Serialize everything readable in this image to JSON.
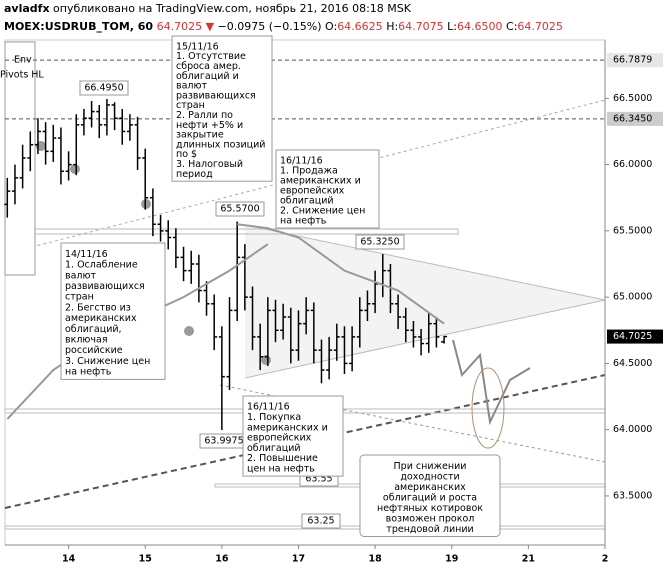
{
  "header": {
    "author": "avladfx",
    "published": "опубликовано на TradingView.com, ноябрь 21, 2016 08:18 MSK",
    "symbol": "MOEX:USDRUB_TOM, 60",
    "last": "64.7025",
    "arrow": "▼",
    "change": "−0.0975 (−0.15%)",
    "quote": [
      {
        "label": "O:",
        "value": "64.6625"
      },
      {
        "label": "H:",
        "value": "64.7075"
      },
      {
        "label": "L:",
        "value": "64.6500"
      },
      {
        "label": "C:",
        "value": "64.7025"
      }
    ]
  },
  "indicators": [
    "Env",
    "Pivots HL"
  ],
  "chart_data": {
    "type": "ohlc",
    "color": "#000000",
    "x": [
      -0.8,
      -0.7,
      -0.6,
      -0.5,
      -0.4,
      -0.3,
      -0.2,
      -0.1,
      0,
      0.1,
      0.2,
      0.3,
      0.4,
      0.5,
      0.6,
      0.7,
      0.8,
      0.9,
      1,
      1.1,
      1.2,
      1.3,
      1.4,
      1.5,
      1.6,
      1.7,
      1.8,
      1.9,
      2,
      2.1,
      2.2,
      2.3,
      2.4,
      2.5,
      2.6,
      2.7,
      2.8,
      2.9,
      3,
      3.1,
      3.2,
      3.3,
      3.4,
      3.5,
      3.6,
      3.7,
      3.8,
      3.9,
      4,
      4.1,
      4.2,
      4.3,
      4.4,
      4.5,
      4.6,
      4.7,
      4.8,
      4.9
    ],
    "open": [
      65.7,
      65.8,
      65.9,
      66.05,
      66.15,
      66.25,
      66.1,
      66.2,
      65.95,
      66,
      66.3,
      66.35,
      66.4,
      66.3,
      66.45,
      66.35,
      66.25,
      66.3,
      66.05,
      65.75,
      65.55,
      65.5,
      65.45,
      65.3,
      65.2,
      65.25,
      65.05,
      64.95,
      64.7,
      64.4,
      64.9,
      65.3,
      65,
      64.7,
      64.55,
      64.9,
      64.75,
      64.85,
      64.6,
      64.8,
      64.9,
      64.6,
      64.45,
      64.6,
      64.7,
      64.5,
      64.7,
      64.9,
      64.95,
      65.1,
      65.2,
      64.95,
      64.85,
      64.75,
      64.7,
      64.65,
      64.8,
      64.6625
    ],
    "high": [
      65.9,
      66,
      66.15,
      66.25,
      66.35,
      66.32,
      66.3,
      66.28,
      66.1,
      66.38,
      66.42,
      66.48,
      66.45,
      66.495,
      66.47,
      66.42,
      66.38,
      66.36,
      66.12,
      65.82,
      65.62,
      65.58,
      65.52,
      65.38,
      65.35,
      65.32,
      65.12,
      65.02,
      64.78,
      65,
      65.57,
      65.4,
      65.08,
      64.8,
      65,
      64.98,
      64.95,
      64.92,
      64.9,
      65,
      64.96,
      64.68,
      64.7,
      64.8,
      64.78,
      64.78,
      65,
      65.05,
      65.2,
      65.325,
      65.25,
      65.02,
      64.92,
      64.82,
      64.76,
      64.88,
      64.85,
      64.7075
    ],
    "low": [
      65.6,
      65.7,
      65.82,
      65.95,
      66.08,
      66,
      66.02,
      65.85,
      65.88,
      65.92,
      66.22,
      66.28,
      66.2,
      66.22,
      66.26,
      66.15,
      66.18,
      65.96,
      65.66,
      65.46,
      65.42,
      65.36,
      65.22,
      65.12,
      65.1,
      64.96,
      64.86,
      64.6,
      63.9975,
      64.3,
      64.82,
      64.9,
      64.6,
      64.45,
      64.48,
      64.66,
      64.68,
      64.5,
      64.52,
      64.72,
      64.5,
      64.35,
      64.38,
      64.52,
      64.42,
      64.44,
      64.62,
      64.82,
      64.88,
      65,
      64.88,
      64.76,
      64.66,
      64.62,
      64.56,
      64.58,
      64.62,
      64.65
    ],
    "close": [
      65.8,
      65.9,
      66.05,
      66.15,
      66.25,
      66.1,
      66.2,
      65.95,
      66,
      66.3,
      66.35,
      66.4,
      66.3,
      66.45,
      66.35,
      66.25,
      66.3,
      66.05,
      65.75,
      65.55,
      65.5,
      65.45,
      65.3,
      65.2,
      65.25,
      65.05,
      64.95,
      64.7,
      64.4,
      64.9,
      65.3,
      65,
      64.7,
      64.55,
      64.9,
      64.75,
      64.85,
      64.6,
      64.8,
      64.9,
      64.6,
      64.45,
      64.6,
      64.7,
      64.5,
      64.7,
      64.9,
      64.95,
      65.1,
      65.2,
      64.95,
      64.85,
      64.75,
      64.7,
      64.65,
      64.8,
      64.7,
      64.7025
    ],
    "lines": [
      {
        "color": "#999999",
        "x": [
          -0.8,
          -0.2,
          0.6,
          1.5,
          2.1,
          2.6
        ],
        "values": [
          64.08,
          64.45,
          64.76,
          65,
          65.2,
          65.4
        ]
      },
      {
        "color": "#999999",
        "x": [
          2.2,
          2.6,
          3,
          3.6,
          4.3,
          4.9
        ],
        "values": [
          65.55,
          65.52,
          65.45,
          65.2,
          65.05,
          64.8
        ]
      }
    ],
    "xlim": [
      -0.83,
      7
    ],
    "xticks": [
      {
        "value": 0,
        "label": "14"
      },
      {
        "value": 1,
        "label": "15"
      },
      {
        "value": 2,
        "label": "16"
      },
      {
        "value": 3,
        "label": "17"
      },
      {
        "value": 4,
        "label": "18"
      },
      {
        "value": 5,
        "label": "19"
      },
      {
        "value": 6,
        "label": "21"
      },
      {
        "value": 7,
        "label": "2"
      }
    ],
    "ylim": [
      63.13,
      66.94
    ],
    "yticks": [
      {
        "value": 63.5,
        "label": "63.5000"
      },
      {
        "value": 64,
        "label": "64.0000"
      },
      {
        "value": 64.5,
        "label": "64.5000"
      },
      {
        "value": 65,
        "label": "65.0000"
      },
      {
        "value": 65.5,
        "label": "65.5000"
      },
      {
        "value": 66,
        "label": "66.0000"
      },
      {
        "value": 66.5,
        "label": "66.5000"
      }
    ],
    "levels": [
      {
        "value": 66.7879,
        "label": "66.7879"
      },
      {
        "value": 66.345,
        "label": "66.3450"
      }
    ],
    "last_price": {
      "value": 64.7025,
      "label": "64.7025"
    },
    "price_labels": [
      "66.4950",
      "65.5700",
      "65.3250",
      "63.9975",
      "63.55",
      "63.25"
    ],
    "notes": [
      {
        "lines": [
          "15/11/16",
          "1. Отсутствие",
          "сброса амер.",
          "облигаций и",
          "валют",
          "развивающихся",
          "стран",
          "2. Ралли по",
          "нефти +5% и",
          "закрытие",
          "длинных позиций",
          "по $",
          "3. Налоговый",
          "период"
        ]
      },
      {
        "lines": [
          "16/11/16",
          "1. Продажа",
          "американских и",
          "европейских",
          "облигаций",
          "2. Снижение цен",
          "на нефть"
        ]
      },
      {
        "lines": [
          "14/11/16",
          "1. Ослабление",
          "валют",
          "развивающихся",
          "стран",
          "2. Бегство из",
          "американских",
          "облигаций,",
          "включая",
          "российские",
          "3. Снижение цен",
          "на нефть"
        ]
      },
      {
        "lines": [
          "16/11/16",
          "1. Покупка",
          "американских и",
          "европейских",
          "облигаций",
          "2. Повышение",
          "цен на нефть"
        ]
      },
      {
        "lines": [
          "При снижении",
          "доходности",
          "американских",
          "облигаций и роста",
          "нефтяных котировок",
          "возможен прокол",
          "трендовой линии"
        ]
      }
    ]
  }
}
